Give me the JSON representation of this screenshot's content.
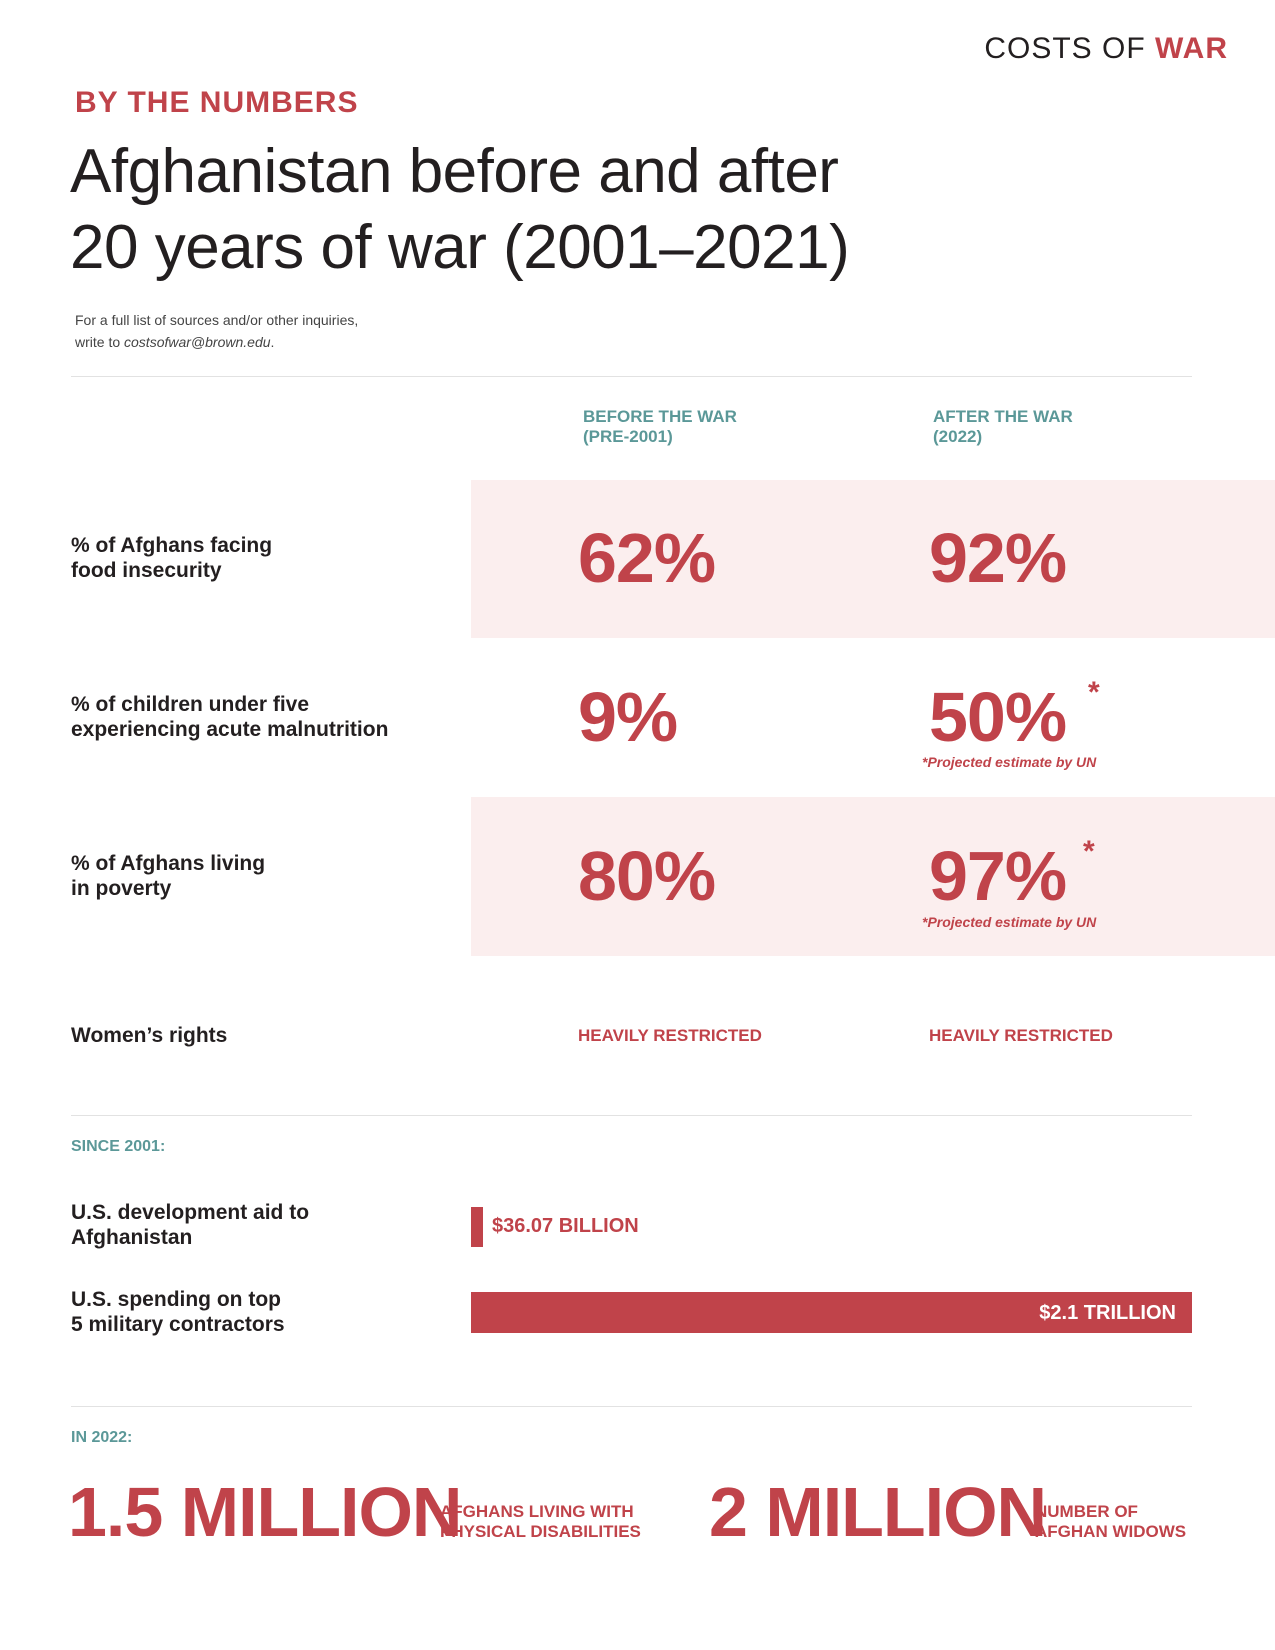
{
  "logo": {
    "costs_of": "COSTS OF",
    "war": "WAR"
  },
  "kicker": "BY THE NUMBERS",
  "title": {
    "line1": "Afghanistan before and after",
    "line2": "20 years of war (2001–2021)"
  },
  "note": {
    "line1": "For a full list of sources and/or other inquiries,",
    "line2_prefix": "write to ",
    "email": "costsofwar@brown.edu",
    "line2_suffix": "."
  },
  "columns": {
    "before": {
      "line1": "BEFORE THE WAR",
      "line2": "(PRE-2001)"
    },
    "after": {
      "line1": "AFTER THE WAR",
      "line2": "(2022)"
    }
  },
  "rows": [
    {
      "label1": "% of Afghans facing",
      "label2": "food insecurity",
      "before": "62%",
      "after": "92%"
    },
    {
      "label1": "% of children under five",
      "label2": "experiencing acute malnutrition",
      "before": "9%",
      "after": "50%",
      "asterisk": "*",
      "footnote": "*Projected estimate by UN"
    },
    {
      "label1": "% of Afghans living",
      "label2": "in poverty",
      "before": "80%",
      "after": "97%",
      "asterisk": "*",
      "footnote": "*Projected estimate by UN"
    },
    {
      "label1": "Women’s rights",
      "before": "HEAVILY RESTRICTED",
      "after": "HEAVILY RESTRICTED"
    }
  ],
  "since": {
    "heading": "SINCE 2001:",
    "items": [
      {
        "label1": "U.S. development aid to",
        "label2": "Afghanistan",
        "value": "$36.07 BILLION",
        "amount_billion": 36.07
      },
      {
        "label1": "U.S. spending on top",
        "label2": "5 military contractors",
        "value": "$2.1 TRILLION",
        "amount_billion": 2100
      }
    ]
  },
  "in2022": {
    "heading": "IN 2022:",
    "stats": [
      {
        "value": "1.5 MILLION",
        "cap1": "AFGHANS LIVING WITH",
        "cap2": "PHYSICAL DISABILITIES"
      },
      {
        "value": "2 MILLION",
        "cap1": "NUMBER OF",
        "cap2": "AFGHAN WIDOWS"
      }
    ]
  },
  "colors": {
    "red": "#c0434a",
    "teal": "#5b9898",
    "band": "#fbeeee"
  }
}
